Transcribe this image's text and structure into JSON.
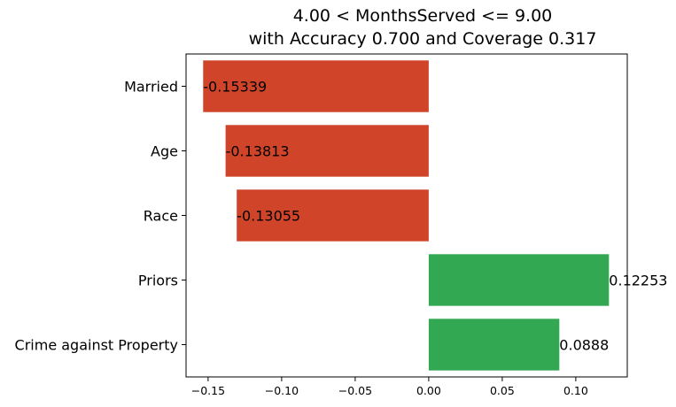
{
  "chart_data": {
    "type": "bar",
    "orientation": "horizontal",
    "title_lines": [
      "4.00 < MonthsServed <= 9.00",
      "with Accuracy 0.700 and Coverage 0.317"
    ],
    "categories": [
      "Married",
      "Age",
      "Race",
      "Priors",
      "Crime against Property"
    ],
    "values": [
      -0.15339,
      -0.13813,
      -0.13055,
      0.12253,
      0.0888
    ],
    "value_labels": [
      "-0.15339",
      "-0.13813",
      "-0.13055",
      "0.12253",
      "0.0888"
    ],
    "xlim": [
      -0.165,
      0.135
    ],
    "xticks": [
      -0.15,
      -0.1,
      -0.05,
      0.0,
      0.05,
      0.1
    ],
    "xtick_labels": [
      "−0.15",
      "−0.10",
      "−0.05",
      "0.00",
      "0.05",
      "0.10"
    ],
    "colors": {
      "negative": "#d0452a",
      "positive": "#33a852"
    },
    "grid": false,
    "legend": "none"
  }
}
